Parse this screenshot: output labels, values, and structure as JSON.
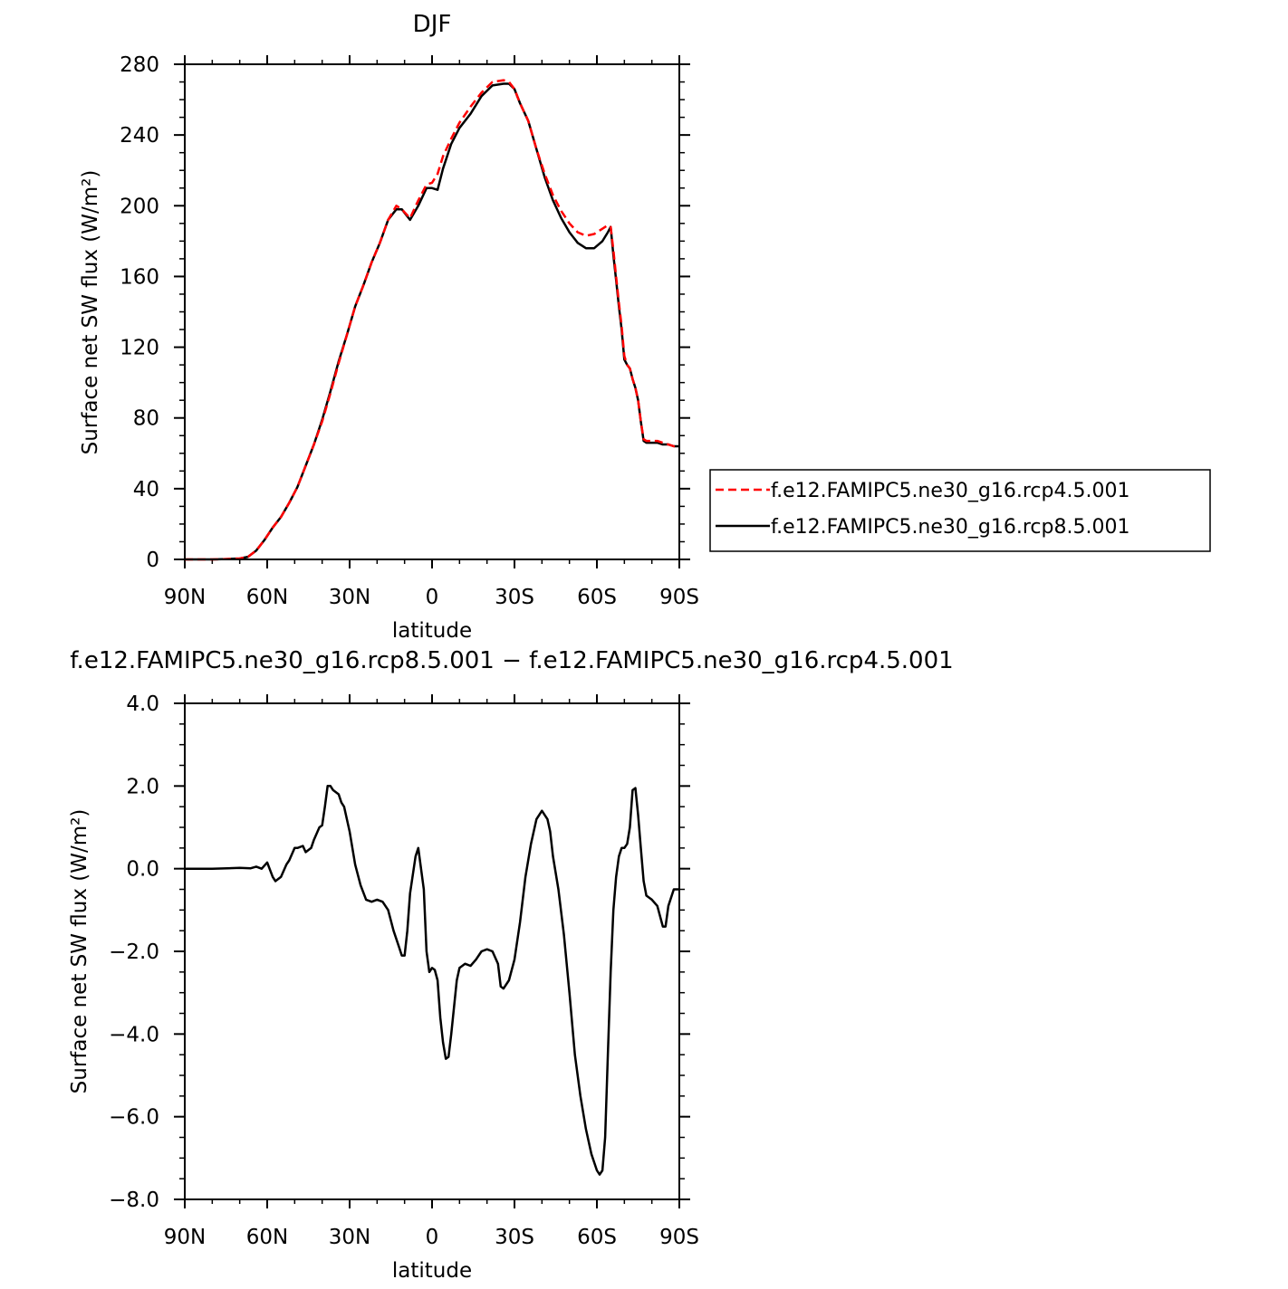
{
  "chart_data": [
    {
      "type": "line",
      "title": "DJF",
      "xlabel": "latitude",
      "ylabel": "Surface net SW flux (W/m²)",
      "x_range": [
        90,
        -90
      ],
      "ylim": [
        0,
        280
      ],
      "xticks": [
        {
          "value": 90,
          "label": "90N"
        },
        {
          "value": 60,
          "label": "60N"
        },
        {
          "value": 30,
          "label": "30N"
        },
        {
          "value": 0,
          "label": "0"
        },
        {
          "value": -30,
          "label": "30S"
        },
        {
          "value": -60,
          "label": "60S"
        },
        {
          "value": -90,
          "label": "90S"
        }
      ],
      "yticks": [
        0,
        40,
        80,
        120,
        160,
        200,
        240,
        280
      ],
      "ytick_labels": [
        "0",
        "40",
        "80",
        "120",
        "160",
        "200",
        "240",
        "280"
      ],
      "legend": "right",
      "series": [
        {
          "name": "f.e12.FAMIPC5.ne30_g16.rcp4.5.001",
          "color": "#ff0000",
          "dash": "dashed",
          "x": [
            90,
            80,
            75,
            70,
            67,
            64,
            61,
            58,
            55,
            52,
            49,
            46,
            43,
            40,
            37,
            34,
            31,
            28,
            25,
            22,
            19,
            16,
            13,
            11,
            8,
            5,
            2,
            0,
            -2,
            -4,
            -7,
            -10,
            -14,
            -18,
            -22,
            -26,
            -28,
            -30,
            -32,
            -35,
            -38,
            -41,
            -44,
            -47,
            -50,
            -53,
            -56,
            -59,
            -62,
            -64,
            -65,
            -66,
            -67,
            -68,
            -69,
            -70,
            -71,
            -72,
            -73,
            -74,
            -75,
            -76,
            -77,
            -78,
            -80,
            -82,
            -84,
            -86,
            -88,
            -90
          ],
          "y": [
            0,
            0,
            0.2,
            0.5,
            1.5,
            5,
            11,
            18,
            24,
            32,
            41,
            53,
            65,
            78,
            94,
            111,
            127,
            143,
            155,
            168,
            179,
            192,
            200,
            198,
            193,
            203,
            212,
            213,
            218,
            228,
            238,
            247,
            256,
            264,
            270,
            271,
            270,
            266,
            258,
            248,
            232,
            218,
            206,
            197,
            190,
            185,
            183,
            184,
            187,
            189,
            188,
            175,
            160,
            145,
            132,
            115,
            110,
            108,
            102,
            97,
            90,
            78,
            68,
            67,
            67,
            67,
            66,
            65,
            64,
            64
          ],
          "values_note": ""
        },
        {
          "name": "f.e12.FAMIPC5.ne30_g16.rcp8.5.001",
          "color": "#000000",
          "dash": "solid",
          "x": [
            90,
            80,
            75,
            70,
            67,
            64,
            61,
            58,
            55,
            52,
            49,
            46,
            43,
            40,
            37,
            34,
            31,
            28,
            25,
            22,
            19,
            16,
            13,
            11,
            8,
            5,
            2,
            0,
            -2,
            -4,
            -7,
            -10,
            -14,
            -18,
            -22,
            -26,
            -28,
            -30,
            -32,
            -35,
            -38,
            -41,
            -44,
            -47,
            -50,
            -53,
            -56,
            -59,
            -62,
            -64,
            -65,
            -66,
            -67,
            -68,
            -69,
            -70,
            -71,
            -72,
            -73,
            -74,
            -75,
            -76,
            -77,
            -78,
            -80,
            -82,
            -84,
            -86,
            -88,
            -90
          ],
          "y": [
            0,
            0,
            0.2,
            0.5,
            1.5,
            5,
            11,
            18,
            24,
            32,
            41,
            53,
            65,
            79,
            95,
            112,
            127,
            143,
            155,
            168,
            179,
            192,
            198,
            198,
            192,
            200,
            210,
            210,
            209,
            221,
            235,
            244,
            252,
            262,
            268,
            269,
            269,
            266,
            258,
            248,
            232,
            216,
            203,
            193,
            185,
            179,
            176,
            176,
            180,
            185,
            188,
            172,
            158,
            143,
            130,
            113,
            110,
            108,
            102,
            97,
            90,
            78,
            67,
            66,
            66,
            66,
            65,
            65,
            64,
            64
          ],
          "values_note": ""
        }
      ]
    },
    {
      "type": "line",
      "title": "f.e12.FAMIPC5.ne30_g16.rcp8.5.001 − f.e12.FAMIPC5.ne30_g16.rcp4.5.001",
      "xlabel": "latitude",
      "ylabel": "Surface net SW flux (W/m²)",
      "x_range": [
        90,
        -90
      ],
      "ylim": [
        -8,
        4
      ],
      "xticks": [
        {
          "value": 90,
          "label": "90N"
        },
        {
          "value": 60,
          "label": "60N"
        },
        {
          "value": 30,
          "label": "30N"
        },
        {
          "value": 0,
          "label": "0"
        },
        {
          "value": -30,
          "label": "30S"
        },
        {
          "value": -60,
          "label": "60S"
        },
        {
          "value": -90,
          "label": "90S"
        }
      ],
      "yticks": [
        -8,
        -6,
        -4,
        -2,
        0,
        2,
        4
      ],
      "ytick_labels": [
        "−8.0",
        "−6.0",
        "−4.0",
        "−2.0",
        "0.0",
        "2.0",
        "4.0"
      ],
      "series": [
        {
          "name": "",
          "color": "#000000",
          "dash": "solid",
          "x": [
            90,
            80,
            70,
            66,
            64,
            62,
            60,
            58,
            57,
            55,
            53,
            52,
            50,
            49,
            47,
            46,
            44,
            43,
            41,
            40,
            39,
            38,
            37,
            36,
            34,
            33,
            32,
            30,
            28,
            26,
            24,
            22,
            20,
            18,
            16,
            14,
            12,
            11,
            10,
            9,
            8,
            6,
            5,
            3,
            2,
            1,
            0,
            -1,
            -2,
            -3,
            -4,
            -5,
            -6,
            -7,
            -9,
            -10,
            -12,
            -14,
            -16,
            -18,
            -20,
            -22,
            -24,
            -25,
            -26,
            -28,
            -30,
            -32,
            -34,
            -36,
            -38,
            -40,
            -42,
            -43,
            -44,
            -46,
            -48,
            -50,
            -52,
            -54,
            -56,
            -58,
            -60,
            -61,
            -62,
            -63,
            -64,
            -65,
            -66,
            -67,
            -68,
            -69,
            -70,
            -71,
            -72,
            -73,
            -74,
            -75,
            -76,
            -77,
            -78,
            -79,
            -80,
            -82,
            -84,
            -85,
            -86,
            -88,
            -90
          ],
          "y": [
            0,
            0,
            0.02,
            0.01,
            0.05,
            0.0,
            0.15,
            -0.2,
            -0.3,
            -0.2,
            0.1,
            0.2,
            0.5,
            0.5,
            0.55,
            0.4,
            0.5,
            0.7,
            1.0,
            1.05,
            1.5,
            2.0,
            2.0,
            1.9,
            1.8,
            1.6,
            1.5,
            0.9,
            0.1,
            -0.4,
            -0.75,
            -0.8,
            -0.75,
            -0.8,
            -1.0,
            -1.5,
            -1.9,
            -2.1,
            -2.1,
            -1.5,
            -0.6,
            0.3,
            0.5,
            -0.5,
            -2.0,
            -2.5,
            -2.4,
            -2.45,
            -2.7,
            -3.6,
            -4.2,
            -4.6,
            -4.55,
            -4.0,
            -2.7,
            -2.4,
            -2.3,
            -2.35,
            -2.2,
            -2.0,
            -1.95,
            -2.0,
            -2.3,
            -2.85,
            -2.9,
            -2.7,
            -2.2,
            -1.3,
            -0.2,
            0.6,
            1.2,
            1.4,
            1.2,
            0.9,
            0.3,
            -0.5,
            -1.6,
            -3.0,
            -4.5,
            -5.5,
            -6.3,
            -6.9,
            -7.3,
            -7.4,
            -7.3,
            -6.5,
            -4.5,
            -2.5,
            -1.0,
            -0.2,
            0.3,
            0.5,
            0.5,
            0.6,
            1.0,
            1.9,
            1.95,
            1.3,
            0.5,
            -0.3,
            -0.65,
            -0.7,
            -0.75,
            -0.9,
            -1.4,
            -1.4,
            -0.9,
            -0.5,
            -0.5
          ],
          "values_note": ""
        }
      ]
    }
  ]
}
